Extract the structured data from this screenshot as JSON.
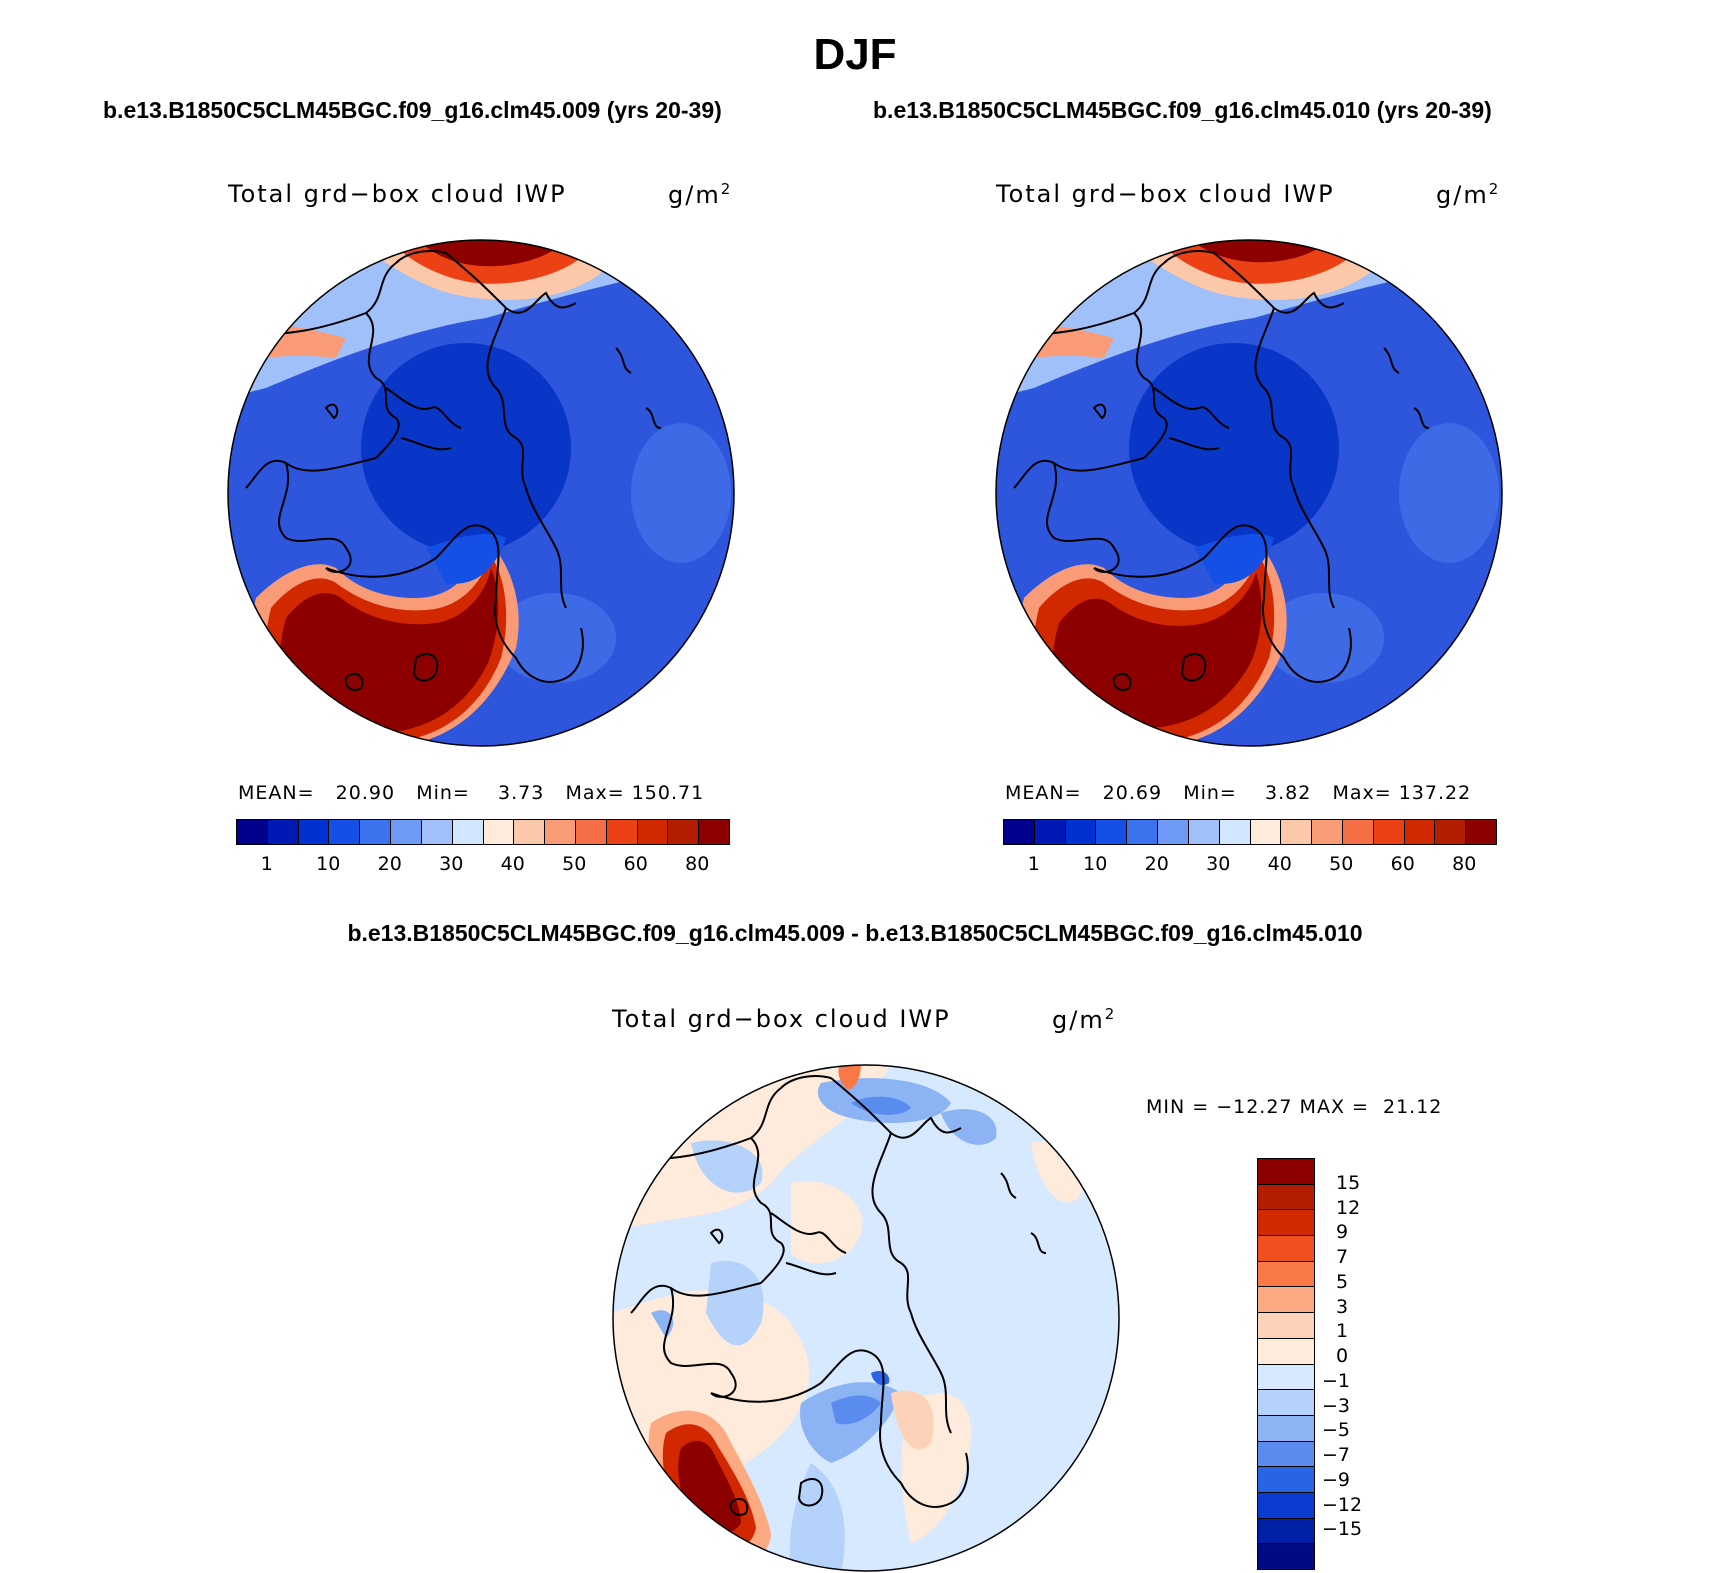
{
  "title": "DJF",
  "panels": [
    {
      "case_title": "b.e13.B1850C5CLM45BGC.f09_g16.clm45.009 (yrs 20-39)",
      "variable": "Total grd−box cloud IWP",
      "units": "g/m",
      "units_exp": "2",
      "mean_label": "MEAN=",
      "mean": "20.90",
      "min_label": "Min=",
      "min": "3.73",
      "max_label": "Max=",
      "max": "150.71"
    },
    {
      "case_title": "b.e13.B1850C5CLM45BGC.f09_g16.clm45.010 (yrs 20-39)",
      "variable": "Total grd−box cloud IWP",
      "units": "g/m",
      "units_exp": "2",
      "mean_label": "MEAN=",
      "mean": "20.69",
      "min_label": "Min=",
      "min": "3.82",
      "max_label": "Max=",
      "max": "137.22"
    }
  ],
  "colorbar": {
    "colors": [
      "#00008c",
      "#0018b4",
      "#0032d2",
      "#1450e6",
      "#3c74f0",
      "#6e9af5",
      "#a0c0fa",
      "#d2e6ff",
      "#ffebdc",
      "#fcc8aa",
      "#fa9b78",
      "#f56e46",
      "#eb4114",
      "#d22800",
      "#b41e00",
      "#8c0000"
    ],
    "tick_labels": [
      "1",
      "10",
      "20",
      "30",
      "40",
      "50",
      "60",
      "80"
    ]
  },
  "difference": {
    "title": "b.e13.B1850C5CLM45BGC.f09_g16.clm45.009 - b.e13.B1850C5CLM45BGC.f09_g16.clm45.010",
    "variable": "Total grd−box cloud IWP",
    "units": "g/m",
    "units_exp": "2",
    "minmax": "MIN = −12.27 MAX =  21.12",
    "colors": [
      "#8c0000",
      "#b41e00",
      "#d22800",
      "#f0501e",
      "#fa7846",
      "#fcaa82",
      "#fcd2b9",
      "#ffebdc",
      "#d7e9ff",
      "#b4d2fa",
      "#8cb4f5",
      "#5a8cf0",
      "#2864e6",
      "#0a3cd2",
      "#0020a8",
      "#000a82"
    ],
    "tick_labels": [
      "15",
      "12",
      "9",
      "7",
      "5",
      "3",
      "1",
      "0",
      "−1",
      "−3",
      "−5",
      "−7",
      "−9",
      "−12",
      "−15"
    ]
  }
}
